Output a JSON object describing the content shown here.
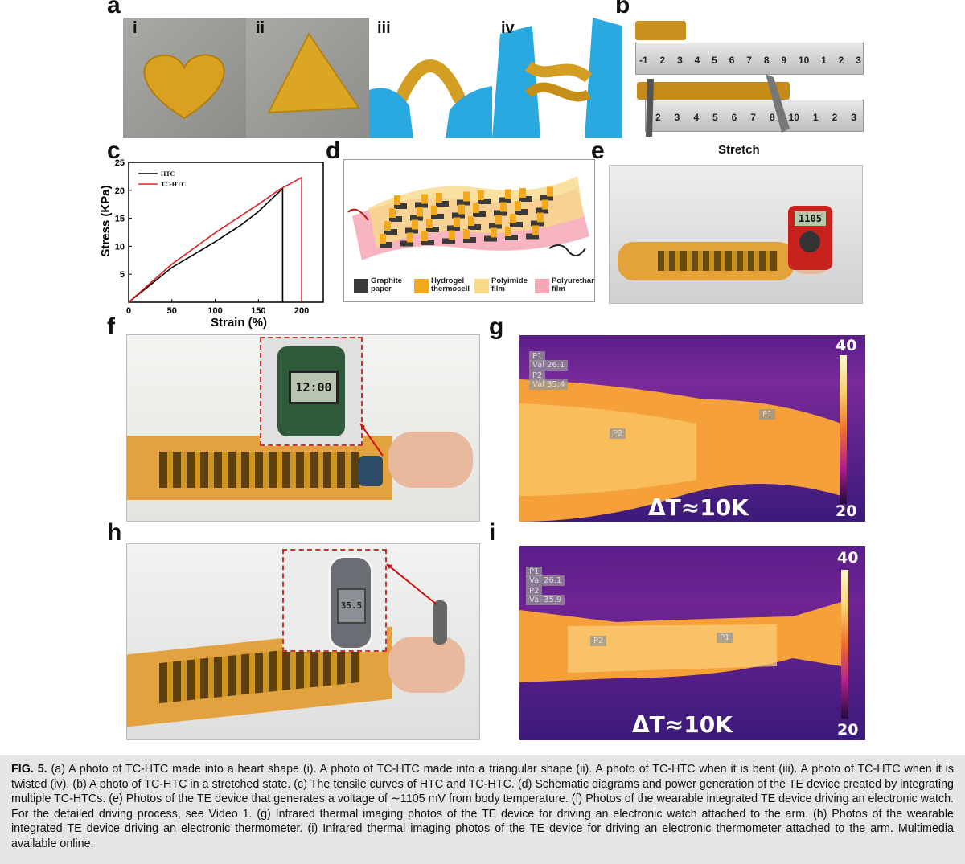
{
  "panels": {
    "a": "a",
    "b": "b",
    "c": "c",
    "d": "d",
    "e": "e",
    "f": "f",
    "g": "g",
    "h": "h",
    "i": "i"
  },
  "panel_a_sub": [
    "i",
    "ii",
    "iii",
    "iv"
  ],
  "panel_b": {
    "ruler_top": [
      "-1",
      "2",
      "3",
      "4",
      "5",
      "6",
      "7",
      "8",
      "9",
      "10",
      "1",
      "2",
      "3"
    ],
    "ruler_bottom": [
      "2",
      "3",
      "4",
      "5",
      "6",
      "7",
      "8",
      "10",
      "1",
      "2",
      "3"
    ]
  },
  "stretch_title": "Stretch",
  "panel_d_legend": [
    {
      "label": "Graphite paper",
      "color": "#3a3a3a"
    },
    {
      "label": "Hydrogel thermocell",
      "color": "#f2a91d"
    },
    {
      "label": "Polyimide film",
      "color": "#f7d98a"
    },
    {
      "label": "Polyurethane film",
      "color": "#f3a7b4"
    }
  ],
  "panel_e": {
    "meter_reading": "1105"
  },
  "panel_f": {
    "watch_reading": "12:00"
  },
  "panel_h": {
    "thermo_reading": "35.5"
  },
  "panel_g": {
    "p1_label": "P1",
    "p1_val": "Val 26.1",
    "p2_label": "P2",
    "p2_val": "Val 35.4",
    "marker_p1": "P1",
    "marker_p2": "P2",
    "delta": "ΔT≈10K",
    "scale_max": "40",
    "scale_min": "20"
  },
  "panel_i": {
    "p1_label": "P1",
    "p1_val": "Val 26.1",
    "p2_label": "P2",
    "p2_val": "Val 35.9",
    "marker_p1": "P1",
    "marker_p2": "P2",
    "delta": "ΔT≈10K",
    "scale_max": "40",
    "scale_min": "20"
  },
  "chart_data": {
    "type": "line",
    "xlabel": "Strain (%)",
    "ylabel": "Stress (KPa)",
    "xlim": [
      0,
      225
    ],
    "ylim": [
      0,
      25
    ],
    "xticks": [
      0,
      50,
      100,
      150,
      200
    ],
    "yticks": [
      5,
      10,
      15,
      20,
      25
    ],
    "legend_position": "top-left",
    "series": [
      {
        "name": "HTC",
        "color": "#000000",
        "x": [
          0,
          50,
          100,
          130,
          150,
          178,
          178
        ],
        "y": [
          0,
          6.2,
          10.8,
          13.8,
          16.2,
          20.3,
          0
        ]
      },
      {
        "name": "TC-HTC",
        "color": "#e02020",
        "x": [
          0,
          50,
          100,
          150,
          175,
          200,
          200
        ],
        "y": [
          0,
          6.8,
          12.4,
          17.5,
          20.2,
          22.3,
          0
        ]
      }
    ]
  },
  "caption": {
    "fig_label": "FIG. 5.",
    "text": " (a) A photo of TC-HTC made into a heart shape (i). A photo of TC-HTC made into a triangular shape (ii). A photo of TC-HTC when it is bent (iii). A photo of TC-HTC when it is twisted (iv). (b) A photo of TC-HTC in a stretched state. (c) The tensile curves of HTC and TC-HTC. (d) Schematic diagrams and power generation of the TE device created by integrating multiple TC-HTCs. (e) Photos of the TE device that generates a voltage of ∼1105 mV from body temperature. (f) Photos of the wearable integrated TE device driving an electronic watch. For the detailed driving process, see Video 1. (g) Infrared thermal imaging photos of the TE device for driving an electronic watch attached to the arm. (h) Photos of the wearable integrated TE device driving an electronic thermometer. (i) Infrared thermal imaging photos of the TE device for driving an electronic thermometer attached to the arm. Multimedia available online."
  }
}
